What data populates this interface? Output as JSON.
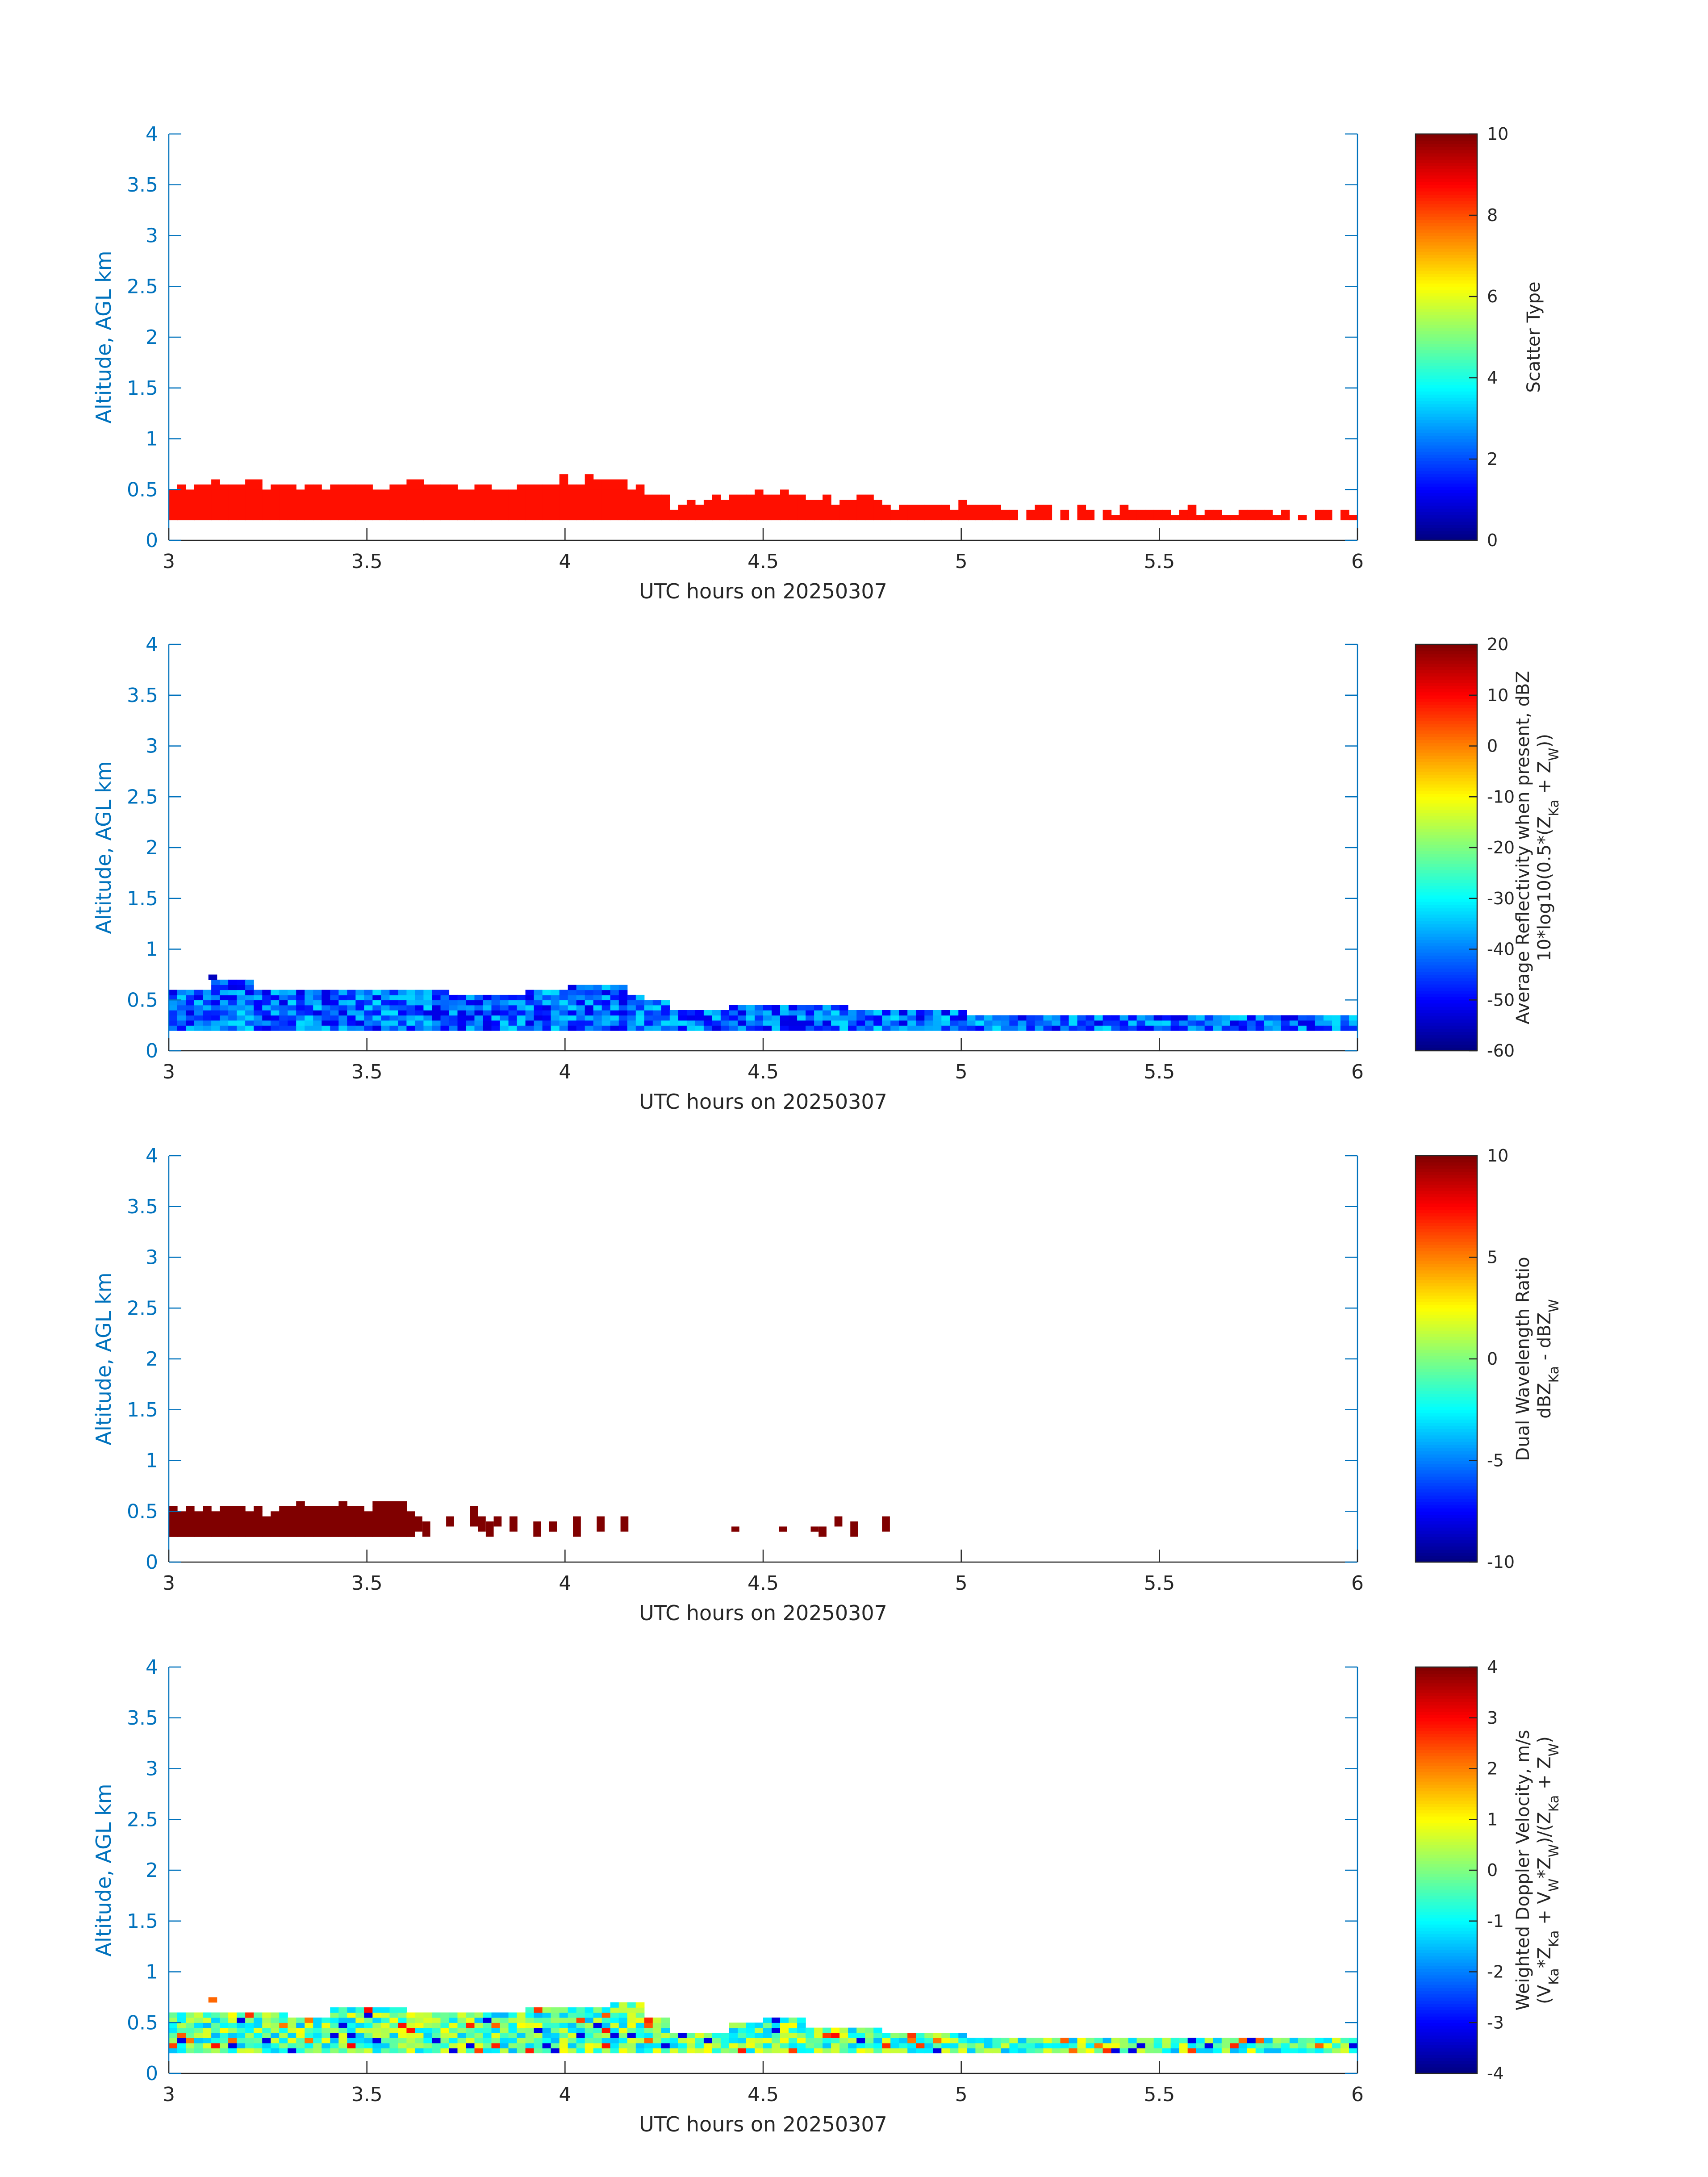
{
  "figure": {
    "colors": {
      "axis_y": "#0072BD",
      "axis_x": "#262626",
      "colormap": "jet"
    }
  },
  "chart_data": [
    {
      "type": "heatmap",
      "panel": "scatter-type",
      "xlabel": "UTC hours on 20250307",
      "ylabel": "Altitude, AGL km",
      "xlim": [
        3,
        6
      ],
      "ylim": [
        0,
        4
      ],
      "xticks": [
        "3",
        "3.5",
        "4",
        "4.5",
        "5",
        "5.5",
        "6"
      ],
      "yticks": [
        "0",
        "0.5",
        "1",
        "1.5",
        "2",
        "2.5",
        "3",
        "3.5",
        "4"
      ],
      "colorbar": {
        "label_lines": [
          "Scatter Type"
        ],
        "clim": [
          0,
          10
        ],
        "ticks": [
          "0",
          "2",
          "4",
          "6",
          "8",
          "10"
        ]
      },
      "field": "constant",
      "constant_value": 8.6,
      "bottom_km": 0.2,
      "top_km_profile": [
        [
          3.0,
          0.5
        ],
        [
          3.05,
          0.55
        ],
        [
          3.1,
          0.55
        ],
        [
          3.2,
          0.55
        ],
        [
          3.3,
          0.55
        ],
        [
          3.4,
          0.55
        ],
        [
          3.5,
          0.55
        ],
        [
          3.6,
          0.6
        ],
        [
          3.65,
          0.55
        ],
        [
          3.7,
          0.5
        ],
        [
          3.8,
          0.5
        ],
        [
          3.85,
          0.55
        ],
        [
          3.9,
          0.55
        ],
        [
          3.95,
          0.6
        ],
        [
          4.0,
          0.6
        ],
        [
          4.05,
          0.6
        ],
        [
          4.1,
          0.6
        ],
        [
          4.15,
          0.5
        ],
        [
          4.2,
          0.45
        ],
        [
          4.25,
          0.35
        ],
        [
          4.3,
          0.35
        ],
        [
          4.35,
          0.4
        ],
        [
          4.4,
          0.45
        ],
        [
          4.5,
          0.45
        ],
        [
          4.6,
          0.4
        ],
        [
          4.7,
          0.4
        ],
        [
          4.8,
          0.35
        ],
        [
          4.9,
          0.35
        ],
        [
          5.0,
          0.35
        ],
        [
          5.1,
          0.3
        ],
        [
          5.2,
          0.3
        ],
        [
          5.3,
          0.3
        ],
        [
          5.4,
          0.3
        ],
        [
          5.5,
          0.3
        ],
        [
          5.6,
          0.3
        ],
        [
          5.7,
          0.3
        ],
        [
          5.8,
          0.3
        ],
        [
          5.9,
          0.3
        ],
        [
          6.0,
          0.3
        ]
      ],
      "gaps_hours": [
        [
          5.13,
          5.15
        ],
        [
          5.22,
          5.23
        ],
        [
          5.27,
          5.28
        ],
        [
          5.33,
          5.34
        ],
        [
          5.82,
          5.83
        ],
        [
          5.87,
          5.89
        ],
        [
          5.92,
          5.95
        ]
      ]
    },
    {
      "type": "heatmap",
      "panel": "reflectivity",
      "xlabel": "UTC hours on 20250307",
      "ylabel": "Altitude, AGL km",
      "xlim": [
        3,
        6
      ],
      "ylim": [
        0,
        4
      ],
      "xticks": [
        "3",
        "3.5",
        "4",
        "4.5",
        "5",
        "5.5",
        "6"
      ],
      "yticks": [
        "0",
        "0.5",
        "1",
        "1.5",
        "2",
        "2.5",
        "3",
        "3.5",
        "4"
      ],
      "colorbar": {
        "label_lines": [
          "Average Reflectivity when present, dBZ",
          "10*log10(0.5*(Z",
          "Ka",
          " + Z",
          "W",
          "))"
        ],
        "clim": [
          -60,
          20
        ],
        "ticks": [
          "-60",
          "-50",
          "-40",
          "-30",
          "-20",
          "-10",
          "0",
          "10",
          "20"
        ]
      },
      "field": "random",
      "value_range": [
        -52,
        -32
      ],
      "bottom_km": 0.2,
      "top_km_profile": [
        [
          3.0,
          0.6
        ],
        [
          3.1,
          0.7
        ],
        [
          3.2,
          0.6
        ],
        [
          3.4,
          0.6
        ],
        [
          3.5,
          0.6
        ],
        [
          3.6,
          0.6
        ],
        [
          3.7,
          0.55
        ],
        [
          3.8,
          0.55
        ],
        [
          3.9,
          0.6
        ],
        [
          4.0,
          0.65
        ],
        [
          4.1,
          0.65
        ],
        [
          4.15,
          0.55
        ],
        [
          4.2,
          0.5
        ],
        [
          4.25,
          0.4
        ],
        [
          4.3,
          0.4
        ],
        [
          4.4,
          0.45
        ],
        [
          4.5,
          0.45
        ],
        [
          4.6,
          0.45
        ],
        [
          4.7,
          0.4
        ],
        [
          4.8,
          0.4
        ],
        [
          4.9,
          0.4
        ],
        [
          5.0,
          0.35
        ],
        [
          5.2,
          0.35
        ],
        [
          5.4,
          0.35
        ],
        [
          5.6,
          0.35
        ],
        [
          5.8,
          0.35
        ],
        [
          6.0,
          0.35
        ]
      ],
      "gaps_hours": []
    },
    {
      "type": "heatmap",
      "panel": "dual-wavelength-ratio",
      "xlabel": "UTC hours on 20250307",
      "ylabel": "Altitude, AGL km",
      "xlim": [
        3,
        6
      ],
      "ylim": [
        0,
        4
      ],
      "xticks": [
        "3",
        "3.5",
        "4",
        "4.5",
        "5",
        "5.5",
        "6"
      ],
      "yticks": [
        "0",
        "0.5",
        "1",
        "1.5",
        "2",
        "2.5",
        "3",
        "3.5",
        "4"
      ],
      "colorbar": {
        "label_lines": [
          "Dual Wavelength Ratio",
          "dBZ",
          "Ka",
          " - dBZ",
          "W"
        ],
        "clim": [
          -10,
          10
        ],
        "ticks": [
          "-10",
          "-5",
          "0",
          "5",
          "10"
        ]
      },
      "field": "constant",
      "constant_value": 10,
      "bottom_km": 0.25,
      "top_km_profile": [
        [
          3.0,
          0.5
        ],
        [
          3.1,
          0.55
        ],
        [
          3.2,
          0.5
        ],
        [
          3.3,
          0.55
        ],
        [
          3.4,
          0.55
        ],
        [
          3.5,
          0.6
        ],
        [
          3.6,
          0.5
        ]
      ],
      "blocks": [
        [
          3.62,
          3.64,
          0.3,
          0.45
        ],
        [
          3.64,
          3.66,
          0.25,
          0.4
        ],
        [
          3.7,
          3.72,
          0.35,
          0.45
        ],
        [
          3.76,
          3.78,
          0.35,
          0.55
        ],
        [
          3.78,
          3.8,
          0.3,
          0.45
        ],
        [
          3.8,
          3.82,
          0.25,
          0.4
        ],
        [
          3.82,
          3.84,
          0.35,
          0.45
        ],
        [
          3.86,
          3.88,
          0.3,
          0.45
        ],
        [
          3.92,
          3.94,
          0.25,
          0.4
        ],
        [
          3.96,
          3.98,
          0.3,
          0.4
        ],
        [
          4.02,
          4.04,
          0.25,
          0.45
        ],
        [
          4.08,
          4.1,
          0.3,
          0.45
        ],
        [
          4.14,
          4.16,
          0.3,
          0.45
        ],
        [
          4.42,
          4.44,
          0.3,
          0.35
        ],
        [
          4.54,
          4.56,
          0.3,
          0.35
        ],
        [
          4.62,
          4.64,
          0.3,
          0.35
        ],
        [
          4.64,
          4.66,
          0.25,
          0.35
        ],
        [
          4.68,
          4.7,
          0.35,
          0.45
        ],
        [
          4.72,
          4.74,
          0.25,
          0.4
        ],
        [
          4.8,
          4.82,
          0.3,
          0.45
        ]
      ]
    },
    {
      "type": "heatmap",
      "panel": "doppler-velocity",
      "xlabel": "UTC hours on 20250307",
      "ylabel": "Altitude, AGL km",
      "xlim": [
        3,
        6
      ],
      "ylim": [
        0,
        4
      ],
      "xticks": [
        "3",
        "3.5",
        "4",
        "4.5",
        "5",
        "5.5",
        "6"
      ],
      "yticks": [
        "0",
        "0.5",
        "1",
        "1.5",
        "2",
        "2.5",
        "3",
        "3.5",
        "4"
      ],
      "colorbar": {
        "label_lines": [
          "Weighted Doppler Velocity, m/s",
          "(V",
          "Ka",
          "*Z",
          "Ka",
          " + V",
          "W",
          "*Z",
          "W",
          ")/(Z",
          "Ka",
          " + Z",
          "W",
          ")"
        ],
        "clim": [
          -4,
          4
        ],
        "ticks": [
          "-4",
          "-3",
          "-2",
          "-1",
          "0",
          "1",
          "2",
          "3",
          "4"
        ]
      },
      "field": "random",
      "value_range": [
        -1.6,
        1.0
      ],
      "bottom_km": 0.2,
      "top_km_profile": [
        [
          3.0,
          0.6
        ],
        [
          3.1,
          0.6
        ],
        [
          3.2,
          0.6
        ],
        [
          3.3,
          0.55
        ],
        [
          3.4,
          0.65
        ],
        [
          3.5,
          0.65
        ],
        [
          3.6,
          0.6
        ],
        [
          3.7,
          0.6
        ],
        [
          3.8,
          0.6
        ],
        [
          3.9,
          0.65
        ],
        [
          4.0,
          0.65
        ],
        [
          4.1,
          0.7
        ],
        [
          4.2,
          0.55
        ],
        [
          4.25,
          0.4
        ],
        [
          4.3,
          0.4
        ],
        [
          4.4,
          0.5
        ],
        [
          4.5,
          0.55
        ],
        [
          4.6,
          0.45
        ],
        [
          4.7,
          0.45
        ],
        [
          4.8,
          0.4
        ],
        [
          4.9,
          0.4
        ],
        [
          5.0,
          0.35
        ],
        [
          5.2,
          0.35
        ],
        [
          5.4,
          0.35
        ],
        [
          5.6,
          0.35
        ],
        [
          5.8,
          0.35
        ],
        [
          6.0,
          0.35
        ]
      ],
      "gaps_hours": []
    }
  ]
}
